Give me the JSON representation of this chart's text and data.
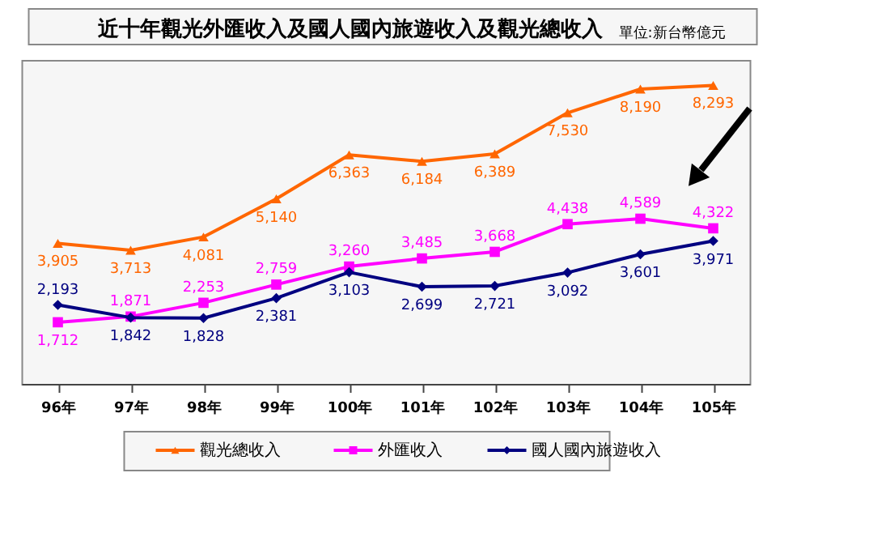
{
  "chart_data": {
    "type": "line",
    "title": "近十年觀光外匯收入及國人國內旅遊收入及觀光總收入",
    "annotations": [
      "單位:新台幣億元"
    ],
    "categories": [
      "96年",
      "97年",
      "98年",
      "99年",
      "100年",
      "101年",
      "102年",
      "103年",
      "104年",
      "105年"
    ],
    "series": [
      {
        "name": "觀光總收入",
        "color": "#ff6600",
        "marker": "triangle",
        "values": [
          3905,
          3713,
          4081,
          5140,
          6363,
          6184,
          6389,
          7530,
          8190,
          8293
        ],
        "value_labels": [
          "3,905",
          "3,713",
          "4,081",
          "5,140",
          "6,363",
          "6,184",
          "6,389",
          "7,530",
          "8,190",
          "8,293"
        ]
      },
      {
        "name": "外匯收入",
        "color": "#ff00ff",
        "marker": "square",
        "values": [
          1712,
          1871,
          2253,
          2759,
          3260,
          3485,
          3668,
          4438,
          4589,
          4322
        ],
        "value_labels": [
          "1,712",
          "1,871",
          "2,253",
          "2,759",
          "3,260",
          "3,485",
          "3,668",
          "4,438",
          "4,589",
          "4,322"
        ]
      },
      {
        "name": "國人國內旅遊收入",
        "color": "#000080",
        "marker": "diamond",
        "values": [
          2193,
          1842,
          1828,
          2381,
          3103,
          2699,
          2721,
          3092,
          3601,
          3971
        ],
        "value_labels": [
          "2,193",
          "1,842",
          "1,828",
          "2,381",
          "3,103",
          "2,699",
          "2,721",
          "3,092",
          "3,601",
          "3,971"
        ]
      }
    ],
    "legend": "bottom",
    "grid": false,
    "tick_labels": "x"
  }
}
